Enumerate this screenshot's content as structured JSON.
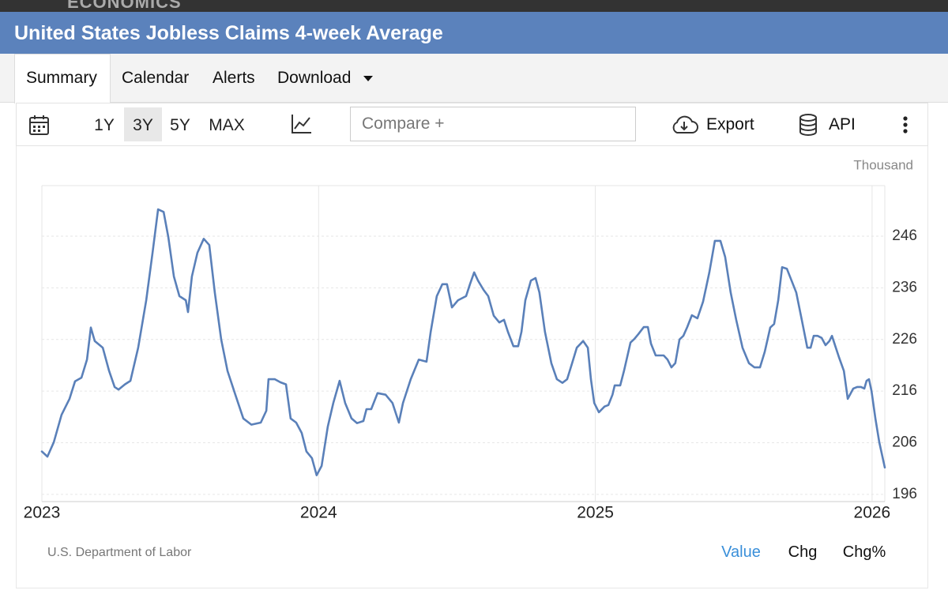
{
  "brand": "ECONOMICS",
  "header": {
    "title": "United States Jobless Claims 4-week Average"
  },
  "tabs": [
    "Summary",
    "Calendar",
    "Alerts",
    "Download"
  ],
  "toolbar": {
    "ranges": [
      "1Y",
      "3Y",
      "5Y",
      "MAX"
    ],
    "compare_placeholder": "Compare +",
    "export": "Export",
    "api": "API"
  },
  "chart_data": {
    "type": "line",
    "unit": "Thousand",
    "x": [
      2023.0,
      2023.02,
      2023.043,
      2023.071,
      2023.1,
      2023.12,
      2023.143,
      2023.163,
      2023.177,
      2023.191,
      2023.22,
      2023.243,
      2023.263,
      2023.277,
      2023.3,
      2023.32,
      2023.348,
      2023.377,
      2023.4,
      2023.42,
      2023.44,
      2023.457,
      2023.477,
      2023.497,
      2023.52,
      2023.528,
      2023.542,
      2023.562,
      2023.585,
      2023.605,
      2023.625,
      2023.648,
      2023.671,
      2023.699,
      2023.728,
      2023.757,
      2023.791,
      2023.811,
      2023.819,
      2023.842,
      2023.862,
      2023.882,
      2023.899,
      2023.919,
      2023.939,
      2023.956,
      2023.976,
      2023.993,
      2024.011,
      2024.033,
      2024.053,
      2024.076,
      2024.096,
      2024.119,
      2024.139,
      2024.162,
      2024.173,
      2024.19,
      2024.213,
      2024.242,
      2024.267,
      2024.29,
      2024.305,
      2024.333,
      2024.362,
      2024.39,
      2024.405,
      2024.427,
      2024.447,
      2024.464,
      2024.482,
      2024.504,
      2024.533,
      2024.547,
      2024.562,
      2024.576,
      2024.596,
      2024.613,
      2024.633,
      2024.653,
      2024.67,
      2024.684,
      2024.704,
      2024.721,
      2024.733,
      2024.747,
      2024.767,
      2024.784,
      2024.798,
      2024.818,
      2024.841,
      2024.861,
      2024.881,
      2024.898,
      2024.916,
      2024.933,
      2024.956,
      2024.973,
      2024.984,
      2024.996,
      2025.013,
      2025.033,
      2025.047,
      2025.062,
      2025.07,
      2025.09,
      2025.104,
      2025.127,
      2025.141,
      2025.155,
      2025.175,
      2025.19,
      2025.201,
      2025.218,
      2025.235,
      2025.247,
      2025.261,
      2025.275,
      2025.289,
      2025.304,
      2025.318,
      2025.332,
      2025.349,
      2025.369,
      2025.389,
      2025.412,
      2025.432,
      2025.452,
      2025.469,
      2025.489,
      2025.509,
      2025.532,
      2025.555,
      2025.575,
      2025.595,
      2025.612,
      2025.632,
      2025.646,
      2025.661,
      2025.675,
      2025.692,
      2025.709,
      2025.726,
      2025.746,
      2025.766,
      2025.778,
      2025.789,
      2025.803,
      2025.818,
      2025.832,
      2025.846,
      2025.855,
      2025.869,
      2025.88,
      2025.898,
      2025.912,
      2025.932,
      2025.946,
      2025.96,
      2025.972,
      2025.98,
      2025.989,
      2025.998,
      2026.012,
      2026.026,
      2026.046
    ],
    "series": [
      {
        "color": "#5a80b9",
        "values": [
          204.3,
          203.3,
          206.1,
          211.4,
          214.5,
          217.9,
          218.6,
          222.1,
          228.3,
          225.7,
          224.4,
          219.9,
          216.8,
          216.3,
          217.3,
          218.0,
          224.4,
          233.6,
          242.8,
          251.2,
          250.7,
          245.8,
          238.2,
          234.4,
          233.6,
          231.3,
          238.2,
          242.8,
          245.5,
          244.3,
          235.1,
          226.0,
          219.9,
          215.3,
          210.7,
          209.5,
          209.9,
          212.2,
          218.3,
          218.3,
          217.7,
          217.3,
          210.7,
          209.9,
          207.9,
          204.3,
          203.0,
          199.7,
          201.5,
          209.1,
          213.7,
          218.0,
          213.7,
          210.7,
          209.8,
          210.2,
          212.5,
          212.5,
          215.6,
          215.3,
          213.7,
          209.9,
          213.7,
          218.3,
          222.1,
          221.7,
          227.5,
          234.4,
          236.7,
          236.7,
          232.2,
          233.6,
          234.4,
          236.7,
          239.0,
          237.4,
          235.6,
          234.4,
          230.6,
          229.3,
          229.8,
          227.5,
          224.7,
          224.7,
          227.5,
          233.6,
          237.4,
          237.9,
          235.1,
          227.5,
          221.4,
          218.3,
          217.6,
          218.3,
          221.4,
          224.4,
          225.7,
          224.4,
          218.3,
          213.7,
          211.9,
          213.0,
          213.3,
          215.3,
          217.1,
          217.1,
          220.0,
          225.4,
          226.1,
          227.0,
          228.4,
          228.4,
          225.2,
          222.9,
          222.9,
          222.9,
          222.1,
          220.6,
          221.4,
          226.0,
          226.7,
          228.4,
          230.7,
          230.1,
          233.3,
          239.0,
          245.1,
          245.1,
          242.0,
          235.1,
          229.8,
          224.4,
          221.4,
          220.6,
          220.6,
          223.6,
          228.3,
          229.0,
          233.6,
          240.0,
          239.7,
          237.4,
          235.1,
          229.8,
          224.4,
          224.4,
          226.7,
          226.7,
          226.3,
          224.9,
          225.7,
          226.7,
          224.4,
          222.6,
          219.9,
          214.5,
          216.5,
          216.8,
          216.8,
          216.5,
          218.0,
          218.3,
          216.0,
          210.7,
          206.1,
          201.2
        ]
      }
    ],
    "xlim": [
      2023,
      2026.046
    ],
    "xticks": [
      2023,
      2024,
      2025,
      2026
    ],
    "ylim": [
      194.6,
      255.8
    ],
    "yticks": [
      196,
      206,
      216,
      226,
      236,
      246
    ],
    "grid": true
  },
  "source": "U.S. Department of Labor",
  "view_modes": [
    "Value",
    "Chg",
    "Chg%"
  ]
}
